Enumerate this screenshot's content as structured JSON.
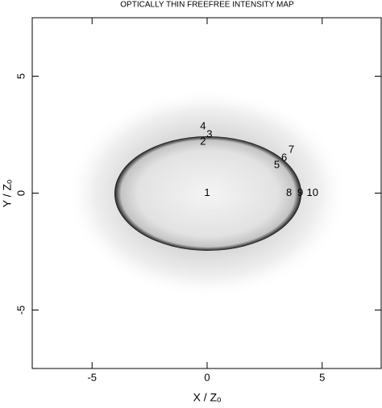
{
  "chart_data": {
    "type": "scatter",
    "title": "OPTICALLY THIN FREEFREE INTENSITY MAP",
    "x_label": "X / Zₒ",
    "y_label": "Y / Zₒ",
    "xlim": [
      -7.6,
      7.6
    ],
    "ylim": [
      -7.5,
      7.5
    ],
    "xticks": [
      -5,
      0,
      5
    ],
    "yticks": [
      -5,
      0,
      5
    ],
    "points": [
      {
        "label": "1",
        "x": 0,
        "y": 0
      },
      {
        "label": "2",
        "x": -0.18,
        "y": 2.19
      },
      {
        "label": "3",
        "x": 0.1,
        "y": 2.5
      },
      {
        "label": "4",
        "x": -0.18,
        "y": 2.85
      },
      {
        "label": "5",
        "x": 3.03,
        "y": 1.18
      },
      {
        "label": "6",
        "x": 3.35,
        "y": 1.49
      },
      {
        "label": "7",
        "x": 3.66,
        "y": 1.84
      },
      {
        "label": "8",
        "x": 3.56,
        "y": 0
      },
      {
        "label": "9",
        "x": 4.05,
        "y": 0
      },
      {
        "label": "10",
        "x": 4.58,
        "y": 0
      }
    ]
  }
}
